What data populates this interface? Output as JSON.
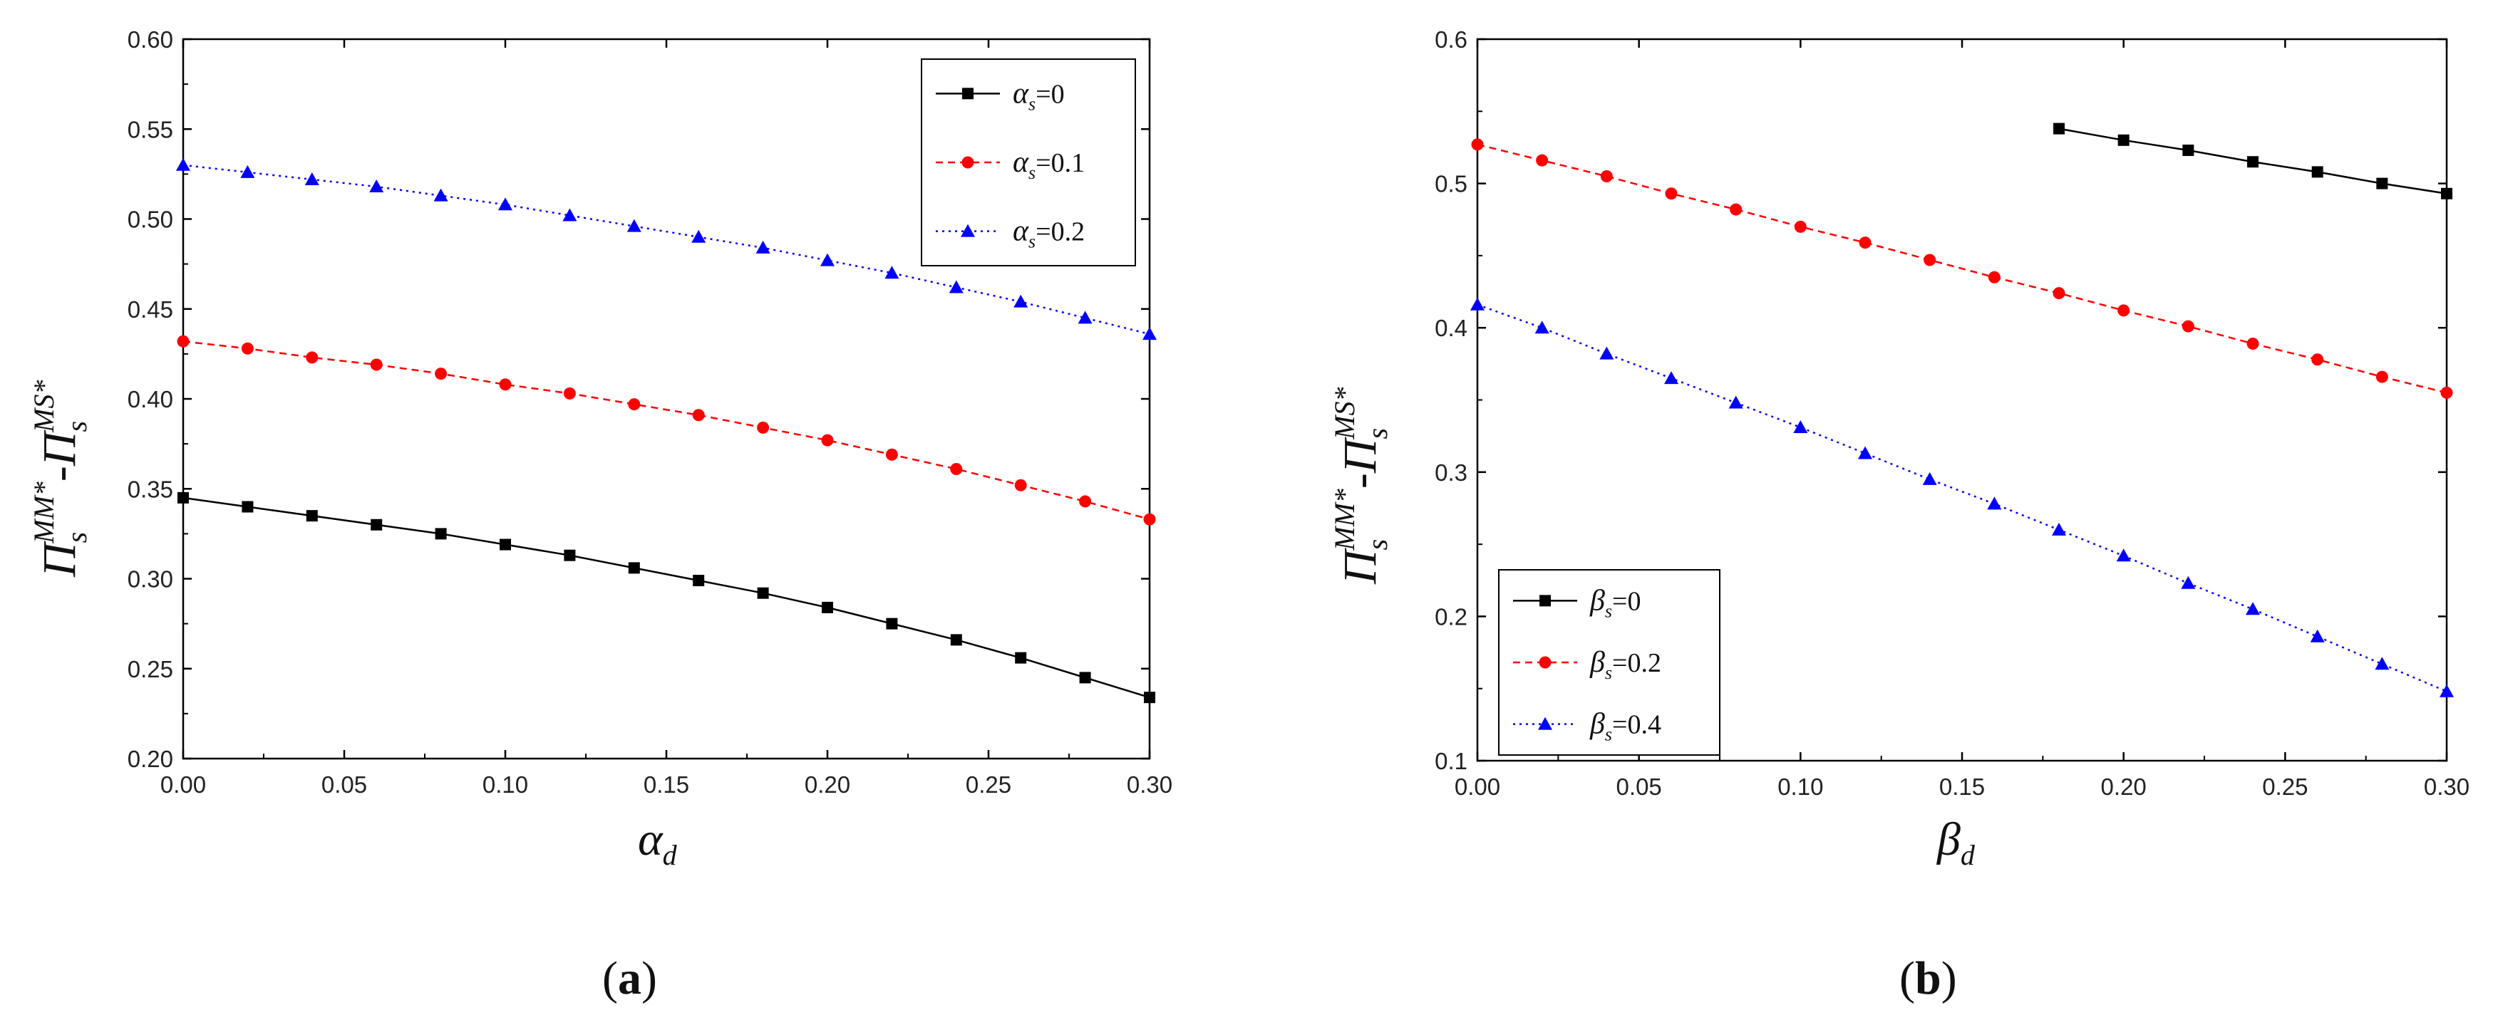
{
  "chart_data": [
    {
      "type": "line",
      "panel_label": "a",
      "xlabel_symbol": "α",
      "xlabel_sub": "d",
      "ylabel": "Π_s^{MM*} - Π_s^{MS*}",
      "ylabel_parts": {
        "base1": "Π",
        "sub1": "s",
        "sup1": "MM*",
        "dash": "-",
        "base2": "Π",
        "sub2": "s",
        "sup2": "MS*"
      },
      "xlim": [
        0,
        0.3
      ],
      "ylim": [
        0.2,
        0.6
      ],
      "xticks": [
        "0.00",
        "0.05",
        "0.10",
        "0.15",
        "0.20",
        "0.25",
        "0.30"
      ],
      "yticks": [
        "0.20",
        "0.25",
        "0.30",
        "0.35",
        "0.40",
        "0.45",
        "0.50",
        "0.55",
        "0.60"
      ],
      "legend_position": "top-right",
      "x": [
        0,
        0.02,
        0.04,
        0.06,
        0.08,
        0.1,
        0.12,
        0.14,
        0.16,
        0.18,
        0.2,
        0.22,
        0.24,
        0.26,
        0.28,
        0.3
      ],
      "series": [
        {
          "name": "α_s=0",
          "sym": "α",
          "sub": "s",
          "val": "=0",
          "color": "#000000",
          "marker": "square",
          "dash": "solid",
          "values": [
            0.345,
            0.34,
            0.335,
            0.33,
            0.325,
            0.319,
            0.313,
            0.306,
            0.299,
            0.292,
            0.284,
            0.275,
            0.266,
            0.256,
            0.245,
            0.234
          ]
        },
        {
          "name": "α_s=0.1",
          "sym": "α",
          "sub": "s",
          "val": "=0.1",
          "color": "#ff0000",
          "marker": "circle",
          "dash": "dashed",
          "values": [
            0.432,
            0.428,
            0.423,
            0.419,
            0.414,
            0.408,
            0.403,
            0.397,
            0.391,
            0.384,
            0.377,
            0.369,
            0.361,
            0.352,
            0.343,
            0.333
          ]
        },
        {
          "name": "α_s=0.2",
          "sym": "α",
          "sub": "s",
          "val": "=0.2",
          "color": "#0000ff",
          "marker": "triangle",
          "dash": "dotted",
          "values": [
            0.53,
            0.526,
            0.522,
            0.518,
            0.513,
            0.508,
            0.502,
            0.496,
            0.49,
            0.484,
            0.477,
            0.47,
            0.462,
            0.454,
            0.445,
            0.436
          ]
        }
      ]
    },
    {
      "type": "line",
      "panel_label": "b",
      "xlabel_symbol": "β",
      "xlabel_sub": "d",
      "ylabel": "Π_s^{MM*} - Π_s^{MS*}",
      "ylabel_parts": {
        "base1": "Π",
        "sub1": "s",
        "sup1": "MM*",
        "dash": "-",
        "base2": "Π",
        "sub2": "s",
        "sup2": "MS*"
      },
      "xlim": [
        0,
        0.3
      ],
      "ylim": [
        0.1,
        0.6
      ],
      "xticks": [
        "0.00",
        "0.05",
        "0.10",
        "0.15",
        "0.20",
        "0.25",
        "0.30"
      ],
      "yticks": [
        "0.1",
        "0.2",
        "0.3",
        "0.4",
        "0.5",
        "0.6"
      ],
      "legend_position": "bottom-left",
      "series": [
        {
          "name": "β_s=0",
          "sym": "β",
          "sub": "s",
          "val": "=0",
          "color": "#000000",
          "marker": "square",
          "dash": "solid",
          "x": [
            0.18,
            0.2,
            0.22,
            0.24,
            0.26,
            0.28,
            0.3
          ],
          "values": [
            0.538,
            0.53,
            0.523,
            0.515,
            0.508,
            0.5,
            0.493
          ]
        },
        {
          "name": "β_s=0.2",
          "sym": "β",
          "sub": "s",
          "val": "=0.2",
          "color": "#ff0000",
          "marker": "circle",
          "dash": "dashed",
          "x": [
            0,
            0.02,
            0.04,
            0.06,
            0.08,
            0.1,
            0.12,
            0.14,
            0.16,
            0.18,
            0.2,
            0.22,
            0.24,
            0.26,
            0.28,
            0.3
          ],
          "values": [
            0.527,
            0.516,
            0.505,
            0.493,
            0.482,
            0.47,
            0.459,
            0.447,
            0.435,
            0.424,
            0.412,
            0.401,
            0.389,
            0.378,
            0.366,
            0.355
          ]
        },
        {
          "name": "β_s=0.4",
          "sym": "β",
          "sub": "s",
          "val": "=0.4",
          "color": "#0000ff",
          "marker": "triangle",
          "dash": "dotted",
          "x": [
            0,
            0.02,
            0.04,
            0.06,
            0.08,
            0.1,
            0.12,
            0.14,
            0.16,
            0.18,
            0.2,
            0.22,
            0.24,
            0.26,
            0.28,
            0.3
          ],
          "values": [
            0.416,
            0.4,
            0.382,
            0.365,
            0.348,
            0.331,
            0.313,
            0.295,
            0.278,
            0.26,
            0.242,
            0.223,
            0.205,
            0.186,
            0.167,
            0.148
          ]
        }
      ]
    }
  ]
}
